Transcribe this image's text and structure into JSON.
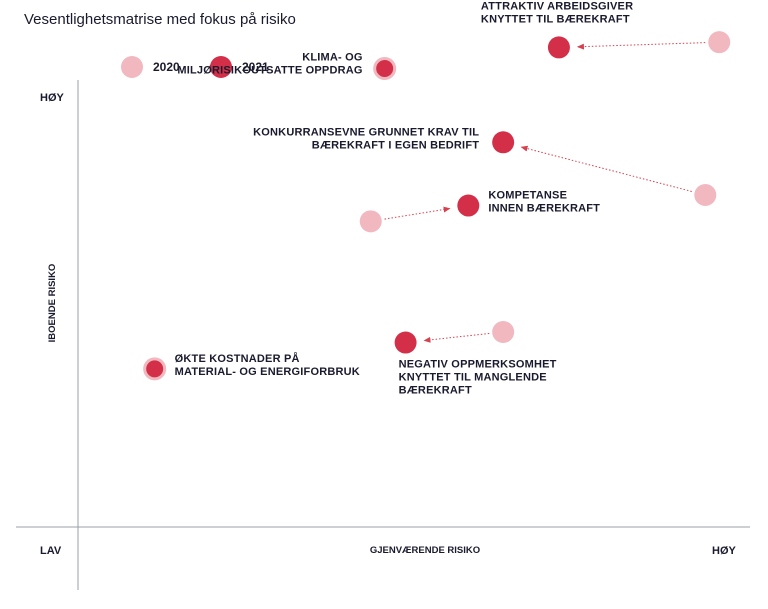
{
  "chart_data": {
    "type": "scatter",
    "title": "Vesentlighetsmatrise med fokus på risiko",
    "xlabel": "GJENVÆRENDE RISIKO",
    "ylabel": "IBOENDE RISIKO",
    "x_low_label": "LAV",
    "x_high_label": "HØY",
    "y_high_label": "HØY",
    "xlim": [
      0,
      100
    ],
    "ylim": [
      0,
      100
    ],
    "grid": false,
    "legend": [
      {
        "name": "2020",
        "color": "#f2b8c0"
      },
      {
        "name": "2021",
        "color": "#d42f48"
      }
    ],
    "points": [
      {
        "id": "attraktiv",
        "lines": [
          "ATTRAKTIV ARBEIDSGIVER",
          "KNYTTET TIL BÆREKRAFT"
        ],
        "x2020": 92,
        "y2020": 92,
        "x2021": 69,
        "y2021": 91
      },
      {
        "id": "klima",
        "lines": [
          "KLIMA- OG",
          "MILJØRISIKOUTSATTE OPPDRAG"
        ],
        "x2020": null,
        "y2020": null,
        "x2021": 44,
        "y2021": 87
      },
      {
        "id": "konkurranse",
        "lines": [
          "KONKURRANSEVNE GRUNNET KRAV TIL",
          "BÆREKRAFT I EGEN BEDRIFT"
        ],
        "x2020": 90,
        "y2020": 63,
        "x2021": 61,
        "y2021": 73
      },
      {
        "id": "kompetanse",
        "lines": [
          "KOMPETANSE",
          "INNEN BÆREKRAFT"
        ],
        "x2020": 42,
        "y2020": 58,
        "x2021": 56,
        "y2021": 61
      },
      {
        "id": "negativ",
        "lines": [
          "NEGATIV OPPMERKSOMHET",
          "KNYTTET TIL MANGLENDE",
          "BÆREKRAFT"
        ],
        "x2020": 61,
        "y2020": 37,
        "x2021": 47,
        "y2021": 35
      },
      {
        "id": "kostnader",
        "lines": [
          "ØKTE KOSTNADER PÅ",
          "MATERIAL- OG ENERGIFORBRUK"
        ],
        "x2020": null,
        "y2020": null,
        "x2021": 11,
        "y2021": 30
      }
    ]
  }
}
